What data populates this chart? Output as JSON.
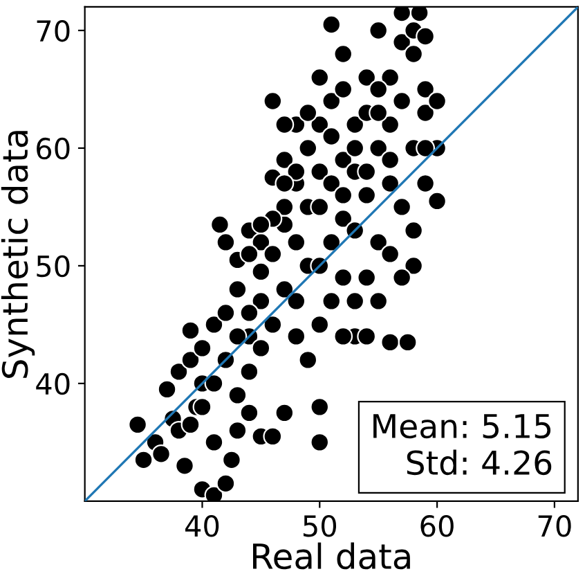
{
  "chart_data": {
    "type": "scatter",
    "xlabel": "Real data",
    "ylabel": "Synthetic data",
    "xlim": [
      30,
      72
    ],
    "ylim": [
      30,
      72
    ],
    "xticks": [
      40,
      50,
      60,
      70
    ],
    "yticks": [
      40,
      50,
      60,
      70
    ],
    "grid": false,
    "marker": "circle",
    "annotations": [
      "Mean: 5.15\nStd: 4.26"
    ],
    "series": [
      {
        "color": "#000000",
        "x": [
          34.5,
          35,
          36,
          36.5,
          37,
          37.5,
          38,
          38.5,
          38,
          39,
          39.5,
          40,
          40,
          41,
          42,
          42.5,
          41,
          43,
          44,
          45,
          46,
          47,
          50,
          43,
          44,
          40,
          41,
          42,
          43,
          39,
          41.5,
          42,
          43,
          44,
          45,
          44,
          45,
          46,
          47,
          45,
          46,
          47,
          48,
          47,
          46,
          47,
          48,
          48,
          49,
          49,
          49,
          48,
          50,
          50,
          50,
          50,
          50,
          51,
          51,
          52,
          52,
          52,
          52,
          53,
          54,
          53,
          53,
          53,
          54,
          55,
          54,
          55,
          55,
          55,
          56,
          56,
          56,
          56,
          57,
          57,
          57,
          57.5,
          58,
          58,
          58,
          58,
          59,
          59,
          59,
          60,
          60,
          60,
          59,
          58.5,
          57,
          55,
          54,
          52,
          51,
          51,
          51,
          49,
          48,
          47,
          46,
          45,
          44,
          43,
          42,
          41,
          40,
          39,
          48,
          50,
          49,
          53,
          54,
          56,
          57,
          51,
          50,
          52,
          46,
          45,
          47,
          44,
          55,
          56,
          53,
          52,
          54,
          58,
          59
        ],
        "values": [
          36.5,
          33.5,
          35,
          34,
          39.5,
          37,
          36,
          33,
          41,
          42,
          38,
          40,
          31,
          30.5,
          31.5,
          33.5,
          35,
          36,
          37.5,
          35.5,
          35.5,
          37.5,
          35,
          39,
          41,
          43,
          45,
          46,
          48,
          44.5,
          53.5,
          52,
          50.5,
          53,
          52,
          44,
          47,
          45,
          48,
          49.5,
          51,
          53.5,
          52,
          55,
          57.5,
          59,
          57,
          62,
          60,
          55,
          50,
          47,
          50,
          55,
          58,
          62,
          66,
          64,
          70.5,
          68,
          59,
          54,
          49,
          44,
          44,
          53,
          58,
          62,
          66,
          70,
          56,
          60,
          52,
          47,
          43.5,
          57,
          62,
          66,
          55,
          64,
          69,
          43.5,
          60,
          50,
          70,
          68,
          63,
          57,
          65,
          55.5,
          60,
          64,
          69.5,
          71.5,
          71.5,
          65,
          63,
          65,
          61,
          57,
          52,
          63,
          58,
          62,
          54,
          43,
          46,
          44,
          42,
          40,
          38,
          36.5,
          44,
          45,
          42,
          47,
          49,
          51,
          49,
          47,
          38,
          44,
          64,
          53.5,
          57,
          51,
          63,
          59,
          60,
          56,
          58,
          53,
          60
        ]
      },
      {
        "type": "line",
        "color": "#1f77b4",
        "x": [
          30,
          72
        ],
        "values": [
          30,
          72
        ],
        "marker": "none"
      }
    ]
  }
}
